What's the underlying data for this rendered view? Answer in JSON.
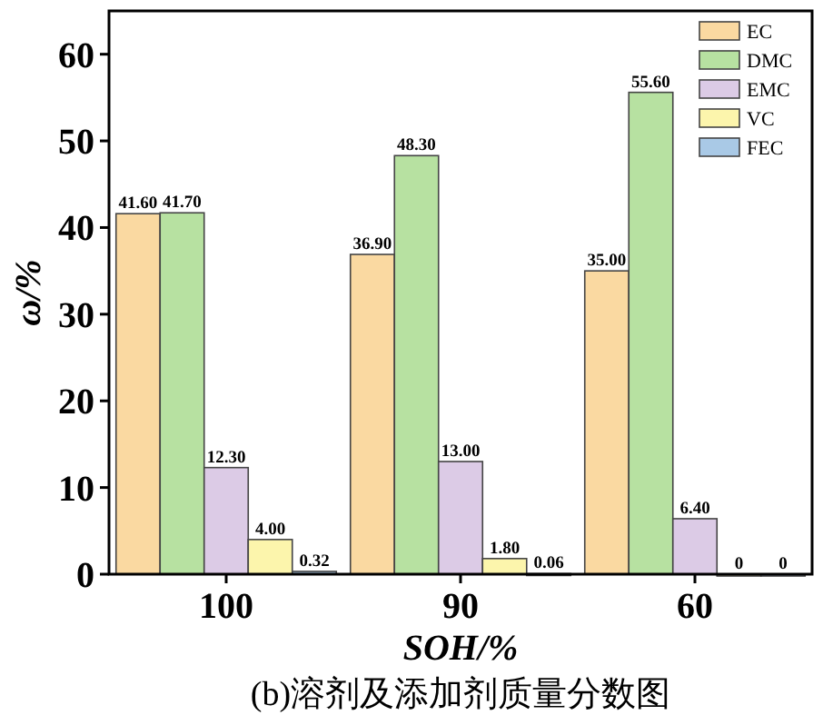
{
  "chart_data": {
    "type": "bar",
    "categories": [
      "100",
      "90",
      "60"
    ],
    "series": [
      {
        "name": "EC",
        "color": "#fad9a1",
        "values": [
          41.6,
          36.9,
          35.0
        ],
        "value_labels": [
          "41.60",
          "36.90",
          "35.00"
        ]
      },
      {
        "name": "DMC",
        "color": "#b7e1a1",
        "values": [
          41.7,
          48.3,
          55.6
        ],
        "value_labels": [
          "41.70",
          "48.30",
          "55.60"
        ]
      },
      {
        "name": "EMC",
        "color": "#dccbe6",
        "values": [
          12.3,
          13.0,
          6.4
        ],
        "value_labels": [
          "12.30",
          "13.00",
          "6.40"
        ]
      },
      {
        "name": "VC",
        "color": "#fcf5ac",
        "values": [
          4.0,
          1.8,
          0
        ],
        "value_labels": [
          "4.00",
          "1.80",
          "0"
        ]
      },
      {
        "name": "FEC",
        "color": "#a9c9e6",
        "values": [
          0.32,
          0.06,
          0
        ],
        "value_labels": [
          "0.32",
          "0.06",
          "0"
        ]
      }
    ],
    "ylim": [
      0,
      65
    ],
    "yticks": [
      0,
      10,
      20,
      30,
      40,
      50,
      60
    ],
    "xlabel": "SOH/%",
    "ylabel": "ω/%",
    "legend": "top right",
    "annotations": [
      "(b)溶剂及添加剂质量分数图"
    ]
  }
}
